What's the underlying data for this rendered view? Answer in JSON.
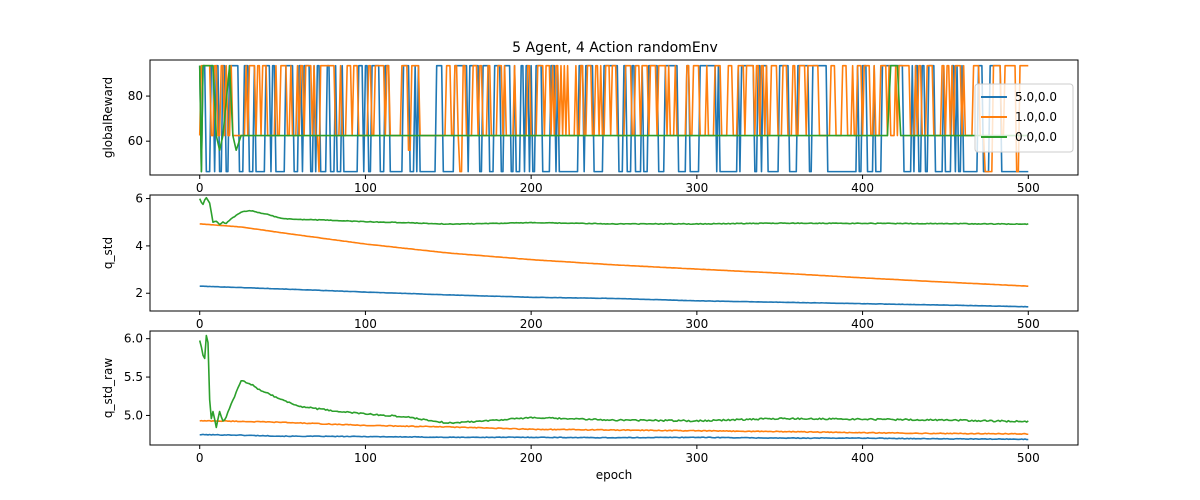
{
  "figure": {
    "title": "5 Agent, 4 Action randomEnv"
  },
  "chart_data": [
    {
      "type": "line",
      "title": "5 Agent, 4 Action randomEnv",
      "xlabel": "",
      "ylabel": "globalReward",
      "xlim": [
        -30,
        530
      ],
      "ylim": [
        45,
        96
      ],
      "xticks": [
        0,
        100,
        200,
        300,
        400,
        500
      ],
      "yticks": [
        60,
        80
      ],
      "legend": {
        "placement": "right",
        "entries": [
          "5.0,0.0",
          "1.0,0.0",
          "0.0,0.0"
        ]
      },
      "colors": [
        "#1f77b4",
        "#ff7f0e",
        "#2ca02c"
      ],
      "generator": "binary_jumps",
      "series": [
        {
          "name": "5.0,0.0",
          "x_range": [
            0,
            500
          ],
          "levels": [
            93.5,
            46.5
          ],
          "jump_probability": 0.28,
          "seed": 11,
          "points": [
            [
              0,
              93.5
            ],
            [
              14,
              93.5
            ],
            [
              16,
              46.5
            ],
            [
              18,
              93.5
            ],
            [
              29,
              93.5
            ],
            [
              31,
              46.5
            ],
            [
              33,
              93.5
            ],
            [
              100,
              93.5
            ],
            [
              102,
              46.5
            ],
            [
              104,
              93.5
            ],
            [
              300,
              46.5
            ],
            [
              400,
              93.5
            ],
            [
              404,
              46.5
            ],
            [
              412,
              93.5
            ],
            [
              420,
              93.5
            ],
            [
              425,
              46.5
            ],
            [
              432,
              93.5
            ],
            [
              500,
              46.5
            ]
          ]
        },
        {
          "name": "1.0,0.0",
          "x_range": [
            0,
            500
          ],
          "levels": [
            93.5,
            62.5
          ],
          "jump_probability": 0.35,
          "seed": 23,
          "points": [
            [
              0,
              62.5
            ],
            [
              70,
              62.5
            ],
            [
              72,
              46.5
            ],
            [
              74,
              93.5
            ],
            [
              124,
              93.5
            ],
            [
              126,
              56.0
            ],
            [
              128,
              93.5
            ],
            [
              155,
              93.5
            ],
            [
              157,
              46.5
            ],
            [
              160,
              93.5
            ],
            [
              470,
              93.5
            ],
            [
              474,
              46.5
            ],
            [
              480,
              93.5
            ],
            [
              493,
              46.5
            ],
            [
              495,
              93.5
            ],
            [
              500,
              93.5
            ]
          ]
        },
        {
          "name": "0.0,0.0",
          "x_range": [
            0,
            500
          ],
          "levels": [
            62.5
          ],
          "points": [
            [
              0,
              93.5
            ],
            [
              1,
              46.5
            ],
            [
              2,
              93.5
            ],
            [
              8,
              93.5
            ],
            [
              10,
              62.5
            ],
            [
              12,
              56.0
            ],
            [
              14,
              62.5
            ],
            [
              18,
              93.5
            ],
            [
              20,
              62.5
            ],
            [
              22,
              56.0
            ],
            [
              25,
              62.5
            ],
            [
              415,
              62.5
            ],
            [
              417,
              93.5
            ],
            [
              421,
              93.5
            ],
            [
              423,
              62.5
            ],
            [
              500,
              62.5
            ]
          ]
        }
      ]
    },
    {
      "type": "line",
      "xlabel": "",
      "ylabel": "q_std",
      "xlim": [
        -30,
        530
      ],
      "ylim": [
        1.25,
        6.15
      ],
      "xticks": [
        0,
        100,
        200,
        300,
        400,
        500
      ],
      "yticks": [
        2,
        4,
        6
      ],
      "colors": [
        "#1f77b4",
        "#ff7f0e",
        "#2ca02c"
      ],
      "series": [
        {
          "name": "5.0,0.0",
          "points": [
            [
              0,
              2.3
            ],
            [
              50,
              2.18
            ],
            [
              100,
              2.05
            ],
            [
              150,
              1.93
            ],
            [
              200,
              1.83
            ],
            [
              250,
              1.78
            ],
            [
              300,
              1.68
            ],
            [
              350,
              1.62
            ],
            [
              400,
              1.56
            ],
            [
              450,
              1.5
            ],
            [
              500,
              1.43
            ]
          ],
          "noise": 0.006
        },
        {
          "name": "1.0,0.0",
          "points": [
            [
              0,
              4.93
            ],
            [
              25,
              4.8
            ],
            [
              50,
              4.55
            ],
            [
              100,
              4.08
            ],
            [
              150,
              3.7
            ],
            [
              200,
              3.42
            ],
            [
              250,
              3.2
            ],
            [
              300,
              3.02
            ],
            [
              350,
              2.85
            ],
            [
              400,
              2.65
            ],
            [
              450,
              2.47
            ],
            [
              500,
              2.3
            ]
          ],
          "noise": 0.004
        },
        {
          "name": "0.0,0.0",
          "points": [
            [
              0,
              6.0
            ],
            [
              1,
              5.85
            ],
            [
              2,
              5.75
            ],
            [
              3,
              5.95
            ],
            [
              4,
              6.05
            ],
            [
              6,
              5.8
            ],
            [
              8,
              5.0
            ],
            [
              10,
              5.05
            ],
            [
              12,
              4.9
            ],
            [
              14,
              5.0
            ],
            [
              16,
              4.95
            ],
            [
              20,
              5.2
            ],
            [
              25,
              5.42
            ],
            [
              30,
              5.5
            ],
            [
              35,
              5.42
            ],
            [
              40,
              5.35
            ],
            [
              50,
              5.15
            ],
            [
              60,
              5.12
            ],
            [
              80,
              5.08
            ],
            [
              100,
              5.02
            ],
            [
              125,
              4.98
            ],
            [
              150,
              4.92
            ],
            [
              200,
              4.98
            ],
            [
              250,
              4.93
            ],
            [
              300,
              4.93
            ],
            [
              350,
              4.96
            ],
            [
              400,
              4.95
            ],
            [
              450,
              4.94
            ],
            [
              500,
              4.92
            ]
          ],
          "noise": 0.015
        }
      ]
    },
    {
      "type": "line",
      "xlabel": "epoch",
      "ylabel": "q_std_raw",
      "xlim": [
        -30,
        530
      ],
      "ylim": [
        4.615,
        6.1
      ],
      "xticks": [
        0,
        100,
        200,
        300,
        400,
        500
      ],
      "yticks": [
        5.0,
        5.5,
        6.0
      ],
      "ytick_labels": [
        "5.0",
        "5.5",
        "6.0"
      ],
      "colors": [
        "#1f77b4",
        "#ff7f0e",
        "#2ca02c"
      ],
      "series": [
        {
          "name": "5.0,0.0",
          "points": [
            [
              0,
              4.75
            ],
            [
              20,
              4.745
            ],
            [
              50,
              4.73
            ],
            [
              100,
              4.725
            ],
            [
              150,
              4.715
            ],
            [
              200,
              4.715
            ],
            [
              250,
              4.71
            ],
            [
              300,
              4.715
            ],
            [
              350,
              4.705
            ],
            [
              400,
              4.705
            ],
            [
              450,
              4.695
            ],
            [
              500,
              4.69
            ]
          ],
          "noise": 0.004
        },
        {
          "name": "1.0,0.0",
          "points": [
            [
              0,
              4.93
            ],
            [
              20,
              4.925
            ],
            [
              50,
              4.91
            ],
            [
              100,
              4.87
            ],
            [
              150,
              4.85
            ],
            [
              200,
              4.82
            ],
            [
              250,
              4.81
            ],
            [
              300,
              4.8
            ],
            [
              350,
              4.79
            ],
            [
              400,
              4.775
            ],
            [
              450,
              4.765
            ],
            [
              500,
              4.76
            ]
          ],
          "noise": 0.005
        },
        {
          "name": "0.0,0.0",
          "points": [
            [
              0,
              5.98
            ],
            [
              1,
              5.9
            ],
            [
              2,
              5.78
            ],
            [
              3,
              5.75
            ],
            [
              4,
              6.05
            ],
            [
              5,
              5.95
            ],
            [
              6,
              5.2
            ],
            [
              7,
              4.95
            ],
            [
              8,
              5.05
            ],
            [
              10,
              4.85
            ],
            [
              12,
              5.05
            ],
            [
              14,
              4.92
            ],
            [
              16,
              4.98
            ],
            [
              20,
              5.2
            ],
            [
              25,
              5.45
            ],
            [
              30,
              5.42
            ],
            [
              35,
              5.35
            ],
            [
              40,
              5.3
            ],
            [
              50,
              5.2
            ],
            [
              60,
              5.12
            ],
            [
              80,
              5.06
            ],
            [
              100,
              5.02
            ],
            [
              125,
              4.98
            ],
            [
              150,
              4.9
            ],
            [
              200,
              4.97
            ],
            [
              250,
              4.94
            ],
            [
              300,
              4.93
            ],
            [
              350,
              4.96
            ],
            [
              400,
              4.95
            ],
            [
              450,
              4.94
            ],
            [
              500,
              4.92
            ]
          ],
          "noise": 0.01
        }
      ]
    }
  ]
}
